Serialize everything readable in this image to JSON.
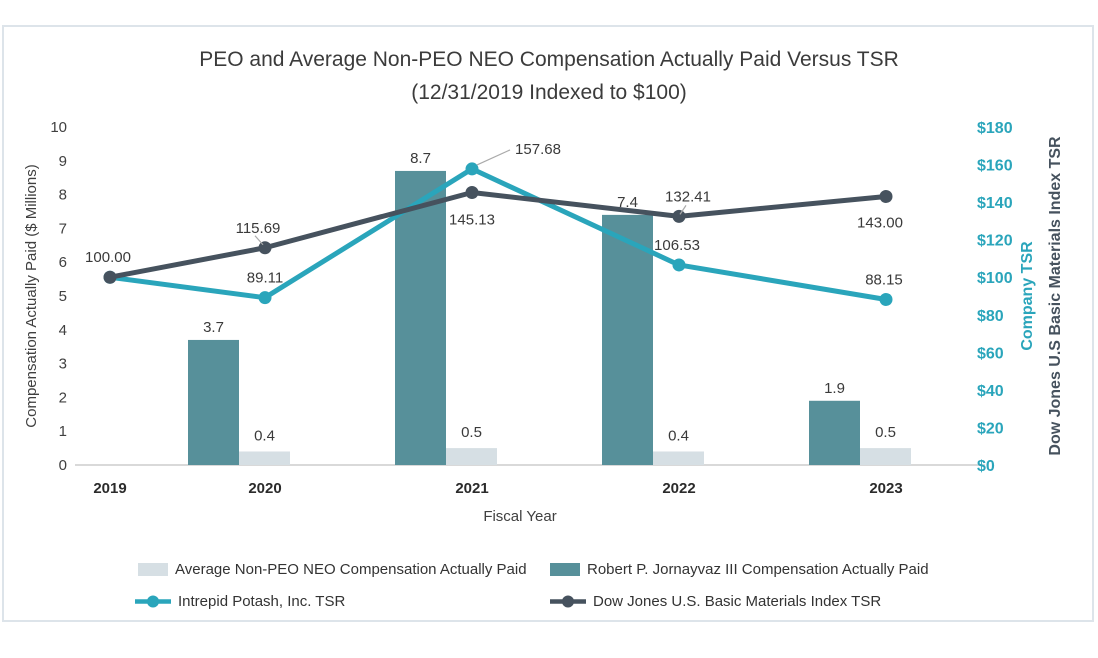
{
  "page": {
    "background": "#ffffff",
    "border_color": "#dde4ea"
  },
  "chart_data": {
    "type": "combo-bar-line",
    "title": "PEO and Average Non-PEO NEO Compensation Actually Paid Versus TSR",
    "subtitle": "(12/31/2019 Indexed to $100)",
    "xlabel": "Fiscal Year",
    "categories": [
      "2019",
      "2020",
      "2021",
      "2022",
      "2023"
    ],
    "left_axis": {
      "label": "Compensation Actually Paid ($ Millions)",
      "min": 0,
      "max": 10,
      "tick_labels": [
        "0",
        "1",
        "2",
        "3",
        "4",
        "5",
        "6",
        "7",
        "8",
        "9",
        "10"
      ]
    },
    "right_axis": {
      "label_company": "Company TSR",
      "label_index": "Dow Jones U.S Basic Materials Index TSR",
      "min": 0,
      "max": 180,
      "tick_labels": [
        "$0",
        "$20",
        "$40",
        "$60",
        "$80",
        "$100",
        "$120",
        "$140",
        "$160",
        "$180"
      ],
      "tick_color": "#2aa5bb"
    },
    "grid": false,
    "legend_position": "bottom",
    "series": [
      {
        "name": "Average Non-PEO NEO Compensation Actually Paid",
        "type": "bar",
        "axis": "left",
        "color": "#d6dfe4",
        "values": [
          null,
          0.4,
          0.5,
          0.4,
          0.5
        ],
        "labels": [
          "",
          "0.4",
          "0.5",
          "0.4",
          "0.5"
        ]
      },
      {
        "name": "Robert P. Jornayvaz III Compensation Actually Paid",
        "type": "bar",
        "axis": "left",
        "color": "#57909a",
        "values": [
          null,
          3.7,
          8.7,
          7.4,
          1.9
        ],
        "labels": [
          "",
          "3.7",
          "8.7",
          "7.4",
          "1.9"
        ]
      },
      {
        "name": "Intrepid Potash, Inc. TSR",
        "type": "line",
        "axis": "right",
        "color": "#2aa5bb",
        "values": [
          100.0,
          89.11,
          157.68,
          106.53,
          88.15
        ],
        "labels": [
          "100.00",
          "89.11",
          "157.68",
          "106.53",
          "88.15"
        ]
      },
      {
        "name": "Dow Jones U.S. Basic Materials Index TSR",
        "type": "line",
        "axis": "right",
        "color": "#46525e",
        "values": [
          100.0,
          115.69,
          145.13,
          132.41,
          143.0
        ],
        "labels": [
          "",
          "115.69",
          "145.13",
          "132.41",
          "143.00"
        ]
      }
    ]
  }
}
